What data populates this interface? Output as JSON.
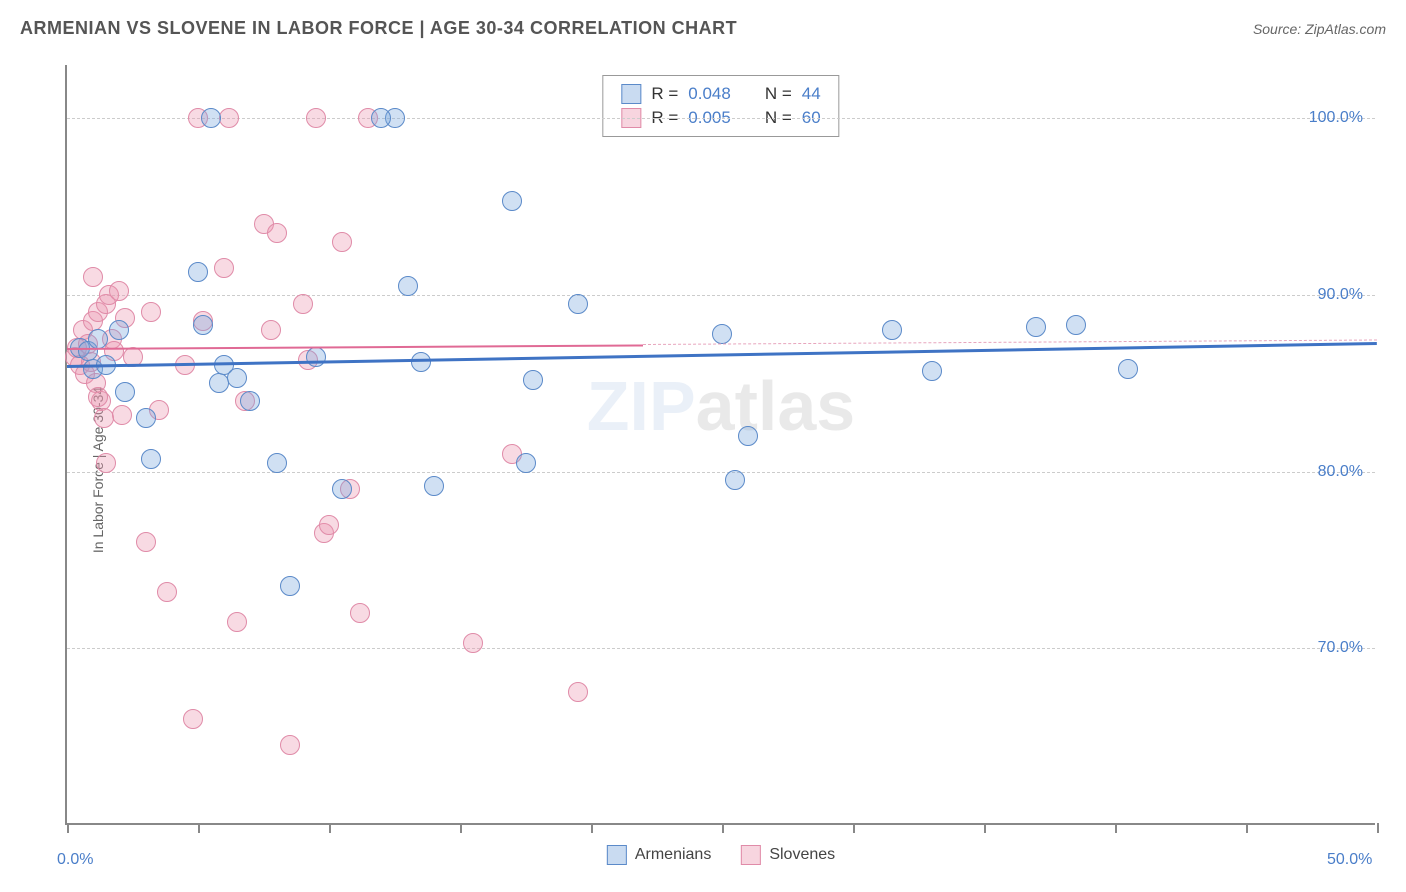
{
  "title": "ARMENIAN VS SLOVENE IN LABOR FORCE | AGE 30-34 CORRELATION CHART",
  "source": "Source: ZipAtlas.com",
  "y_axis_label": "In Labor Force | Age 30-34",
  "watermark_a": "ZIP",
  "watermark_b": "atlas",
  "chart": {
    "type": "scatter-with-trend",
    "background_color": "#ffffff",
    "grid_color": "#cccccc",
    "axis_color": "#888888",
    "x_range": [
      0,
      50
    ],
    "y_range": [
      60,
      103
    ],
    "y_ticks": [
      70,
      80,
      90,
      100
    ],
    "y_tick_labels": [
      "70.0%",
      "80.0%",
      "90.0%",
      "100.0%"
    ],
    "x_ticks": [
      0,
      5,
      10,
      15,
      20,
      25,
      30,
      35,
      40,
      45,
      50
    ],
    "x_tick_labels": {
      "0": "0.0%",
      "50": "50.0%"
    },
    "marker_size": 20,
    "series": [
      {
        "name": "Armenians",
        "color": "#5b8ac9",
        "fill": "rgba(120,165,220,0.35)",
        "R": "0.048",
        "N": "44",
        "trend": {
          "x1": 0,
          "y1": 86.0,
          "x2": 50,
          "y2": 87.3,
          "style": "solid",
          "dash_beyond": null
        },
        "points": [
          [
            0.5,
            87
          ],
          [
            0.8,
            86.8
          ],
          [
            1.0,
            85.8
          ],
          [
            1.2,
            87.5
          ],
          [
            1.5,
            86
          ],
          [
            2.0,
            88
          ],
          [
            2.2,
            84.5
          ],
          [
            5.0,
            91.3
          ],
          [
            5.2,
            88.3
          ],
          [
            3.0,
            83
          ],
          [
            3.2,
            80.7
          ],
          [
            5.5,
            100
          ],
          [
            5.8,
            85
          ],
          [
            6.0,
            86
          ],
          [
            6.5,
            85.3
          ],
          [
            7.0,
            84
          ],
          [
            8.0,
            80.5
          ],
          [
            8.5,
            73.5
          ],
          [
            9.5,
            86.5
          ],
          [
            10.5,
            79
          ],
          [
            12.5,
            100
          ],
          [
            13.0,
            90.5
          ],
          [
            13.5,
            86.2
          ],
          [
            14.0,
            79.2
          ],
          [
            17.0,
            95.3
          ],
          [
            17.5,
            80.5
          ],
          [
            17.8,
            85.2
          ],
          [
            19.5,
            89.5
          ],
          [
            25.0,
            87.8
          ],
          [
            25.5,
            79.5
          ],
          [
            26.0,
            82
          ],
          [
            31.5,
            88
          ],
          [
            33.0,
            85.7
          ],
          [
            37.0,
            88.2
          ],
          [
            38.5,
            88.3
          ],
          [
            40.5,
            85.8
          ],
          [
            12.0,
            100
          ]
        ]
      },
      {
        "name": "Slovenes",
        "color": "#e08ba8",
        "fill": "rgba(235,150,175,0.35)",
        "R": "0.005",
        "N": "60",
        "trend": {
          "x1": 0,
          "y1": 87.0,
          "x2": 22,
          "y2": 87.2,
          "style": "solid",
          "dash_beyond": 50
        },
        "points": [
          [
            0.3,
            86.5
          ],
          [
            0.4,
            87
          ],
          [
            0.5,
            86
          ],
          [
            0.6,
            88
          ],
          [
            0.7,
            85.5
          ],
          [
            0.8,
            87.2
          ],
          [
            0.9,
            86.2
          ],
          [
            1.0,
            88.5
          ],
          [
            1.1,
            85
          ],
          [
            1.2,
            89
          ],
          [
            1.3,
            84
          ],
          [
            1.4,
            83
          ],
          [
            1.5,
            89.5
          ],
          [
            1.6,
            90
          ],
          [
            1.7,
            87.5
          ],
          [
            1.8,
            86.8
          ],
          [
            1.0,
            91
          ],
          [
            1.2,
            84.2
          ],
          [
            1.5,
            80.5
          ],
          [
            2.0,
            90.2
          ],
          [
            2.1,
            83.2
          ],
          [
            2.2,
            88.7
          ],
          [
            2.5,
            86.5
          ],
          [
            3.0,
            76
          ],
          [
            3.2,
            89
          ],
          [
            3.5,
            83.5
          ],
          [
            3.8,
            73.2
          ],
          [
            4.5,
            86
          ],
          [
            5.0,
            100
          ],
          [
            5.2,
            88.5
          ],
          [
            4.8,
            66
          ],
          [
            6.0,
            91.5
          ],
          [
            6.2,
            100
          ],
          [
            6.5,
            71.5
          ],
          [
            6.8,
            84
          ],
          [
            7.5,
            94
          ],
          [
            7.8,
            88
          ],
          [
            8.0,
            93.5
          ],
          [
            8.5,
            64.5
          ],
          [
            9.0,
            89.5
          ],
          [
            9.2,
            86.3
          ],
          [
            9.5,
            100
          ],
          [
            9.8,
            76.5
          ],
          [
            10.5,
            93
          ],
          [
            10.0,
            77
          ],
          [
            10.8,
            79
          ],
          [
            11.2,
            72
          ],
          [
            11.5,
            100
          ],
          [
            15.5,
            70.3
          ],
          [
            17.0,
            81
          ],
          [
            19.5,
            67.5
          ]
        ]
      }
    ],
    "legend_bottom": [
      "Armenians",
      "Slovenes"
    ]
  }
}
